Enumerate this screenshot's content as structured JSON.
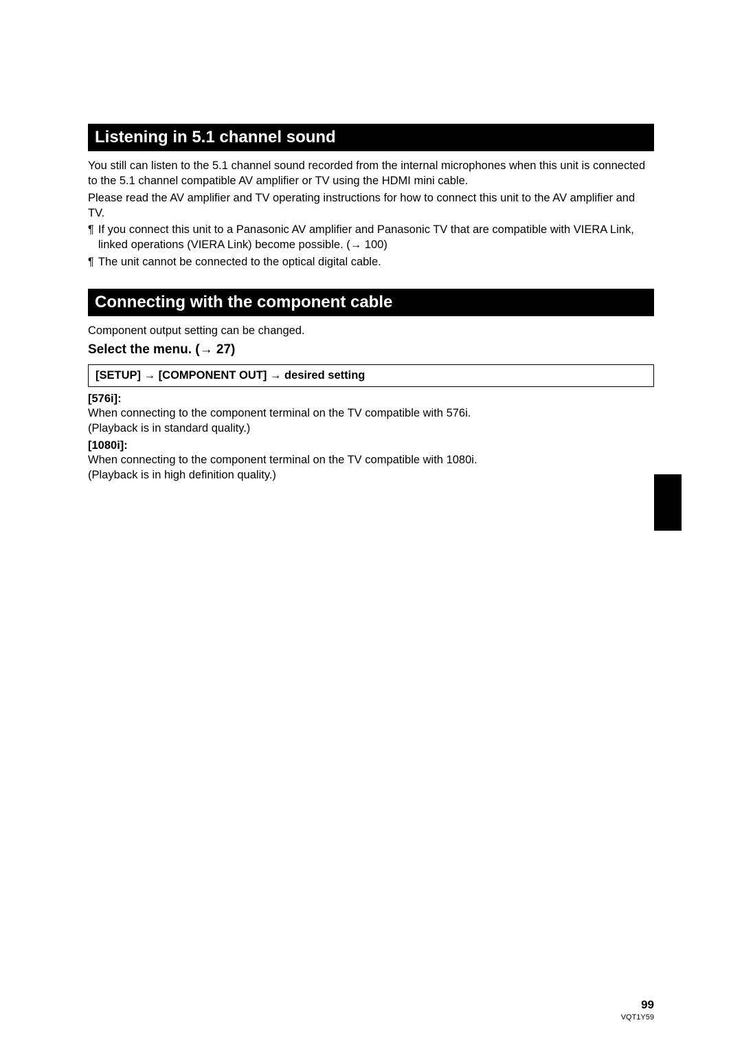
{
  "section1": {
    "header": "Listening in 5.1 channel sound",
    "para1": "You still can listen to the 5.1 channel sound recorded from the internal microphones when this unit is connected to the 5.1 channel compatible AV amplifier or TV using the HDMI mini cable.",
    "para2": "Please read the AV amplifier and TV operating instructions for how to connect this unit to the AV amplifier and TV.",
    "bullet1": "If you connect this unit to a Panasonic AV amplifier and Panasonic TV that are compatible with VIERA Link, linked operations (VIERA Link) become possible. (→ 100)",
    "bullet2": "The unit cannot be connected to the optical digital cable."
  },
  "section2": {
    "header": "Connecting with the component cable",
    "intro": "Component output setting can be changed.",
    "subheading": "Select the menu. (→ 27)",
    "settingPath": "[SETUP] → [COMPONENT OUT] → desired setting",
    "option1": {
      "label": "[576i]:",
      "line1": "When connecting to the component terminal on the TV compatible with 576i.",
      "line2": "(Playback is in standard quality.)"
    },
    "option2": {
      "label": "[1080i]:",
      "line1": "When connecting to the component terminal on the TV compatible with 1080i.",
      "line2": "(Playback is in high definition quality.)"
    }
  },
  "footer": {
    "pageNumber": "99",
    "docId": "VQT1Y59"
  },
  "bulletChar": "¶"
}
